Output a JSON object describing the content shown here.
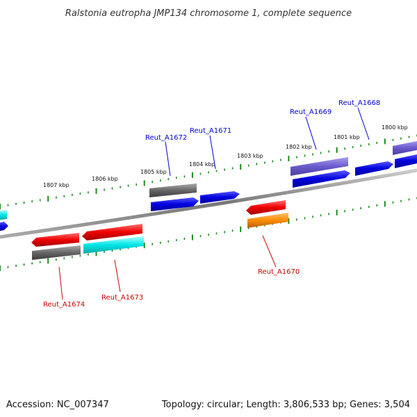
{
  "title": "Ralstonia eutropha JMP134 chromosome 1, complete sequence",
  "footer": {
    "accession": "Accession: NC_007347",
    "summary": "Topology: circular; Length: 3,806,533 bp; Genes: 3,504"
  },
  "scale_labels": [
    "1807 kbp",
    "1806 kbp",
    "1805 kbp",
    "1804 kbp",
    "1803 kbp",
    "1802 kbp",
    "1801 kbp",
    "1800 kbp"
  ],
  "gene_labels": [
    {
      "text": "Reut_A1674",
      "color": "#cc0000"
    },
    {
      "text": "Reut_A1673",
      "color": "#cc0000"
    },
    {
      "text": "Reut_A1672",
      "color": "#0000cc"
    },
    {
      "text": "Reut_A1671",
      "color": "#0000cc"
    },
    {
      "text": "Reut_A1670",
      "color": "#cc0000"
    },
    {
      "text": "Reut_A1669",
      "color": "#0000cc"
    },
    {
      "text": "Reut_A1668",
      "color": "#0000cc"
    }
  ],
  "colors": {
    "backbone": "#888888",
    "tick": "#1a8a1a",
    "forward_gene": "#0000dd",
    "forward_gene_alt": "#6a5acd",
    "reverse_gene": "#ee0000",
    "rna_gene": "#00e5e5",
    "pseudo_gene": "#666666",
    "other_gene": "#ff8c00"
  }
}
